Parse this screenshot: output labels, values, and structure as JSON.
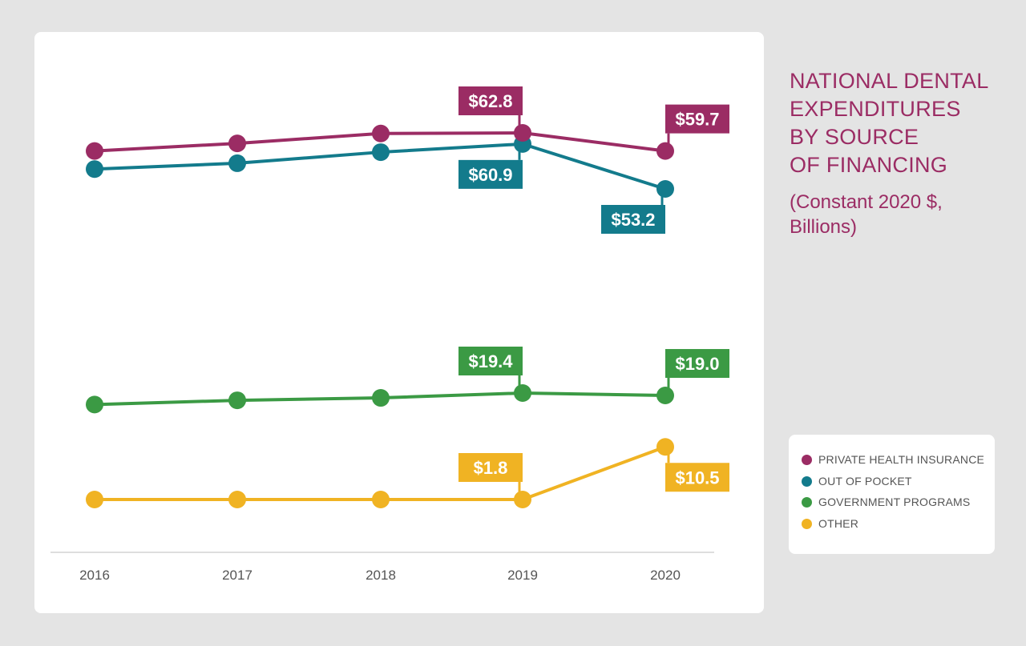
{
  "title_lines": [
    "NATIONAL DENTAL",
    "EXPENDITURES",
    "BY SOURCE",
    "OF FINANCING"
  ],
  "subtitle": "(Constant 2020 $, Billions)",
  "colors": {
    "private": "#9b2c64",
    "pocket": "#137b8c",
    "government": "#3b9a44",
    "other": "#f0b323",
    "title": "#9b2c64",
    "axis_text": "#555555"
  },
  "legend": [
    {
      "label": "PRIVATE HEALTH INSURANCE",
      "color": "#9b2c64"
    },
    {
      "label": "OUT OF POCKET",
      "color": "#137b8c"
    },
    {
      "label": "GOVERNMENT PROGRAMS",
      "color": "#3b9a44"
    },
    {
      "label": "OTHER",
      "color": "#f0b323"
    }
  ],
  "chart_data": {
    "type": "line",
    "title": "NATIONAL DENTAL EXPENDITURES BY SOURCE OF FINANCING",
    "subtitle": "(Constant 2020 $, Billions)",
    "categories": [
      "2016",
      "2017",
      "2018",
      "2019",
      "2020"
    ],
    "xlabel": "",
    "ylabel": "",
    "series": [
      {
        "name": "PRIVATE HEALTH INSURANCE",
        "color": "#9b2c64",
        "values": [
          59.7,
          61.0,
          62.7,
          62.8,
          59.7
        ],
        "labels": [
          null,
          null,
          null,
          "$62.8",
          "$59.7"
        ],
        "label_pos": [
          null,
          null,
          null,
          "above-left",
          "above-right"
        ]
      },
      {
        "name": "OUT OF POCKET",
        "color": "#137b8c",
        "values": [
          56.6,
          57.6,
          59.5,
          60.9,
          53.2
        ],
        "labels": [
          null,
          null,
          null,
          "$60.9",
          "$53.2"
        ],
        "label_pos": [
          null,
          null,
          null,
          "below-left",
          "below-left"
        ]
      },
      {
        "name": "GOVERNMENT PROGRAMS",
        "color": "#3b9a44",
        "values": [
          17.5,
          18.2,
          18.6,
          19.4,
          19.0
        ],
        "labels": [
          null,
          null,
          null,
          "$19.4",
          "$19.0"
        ],
        "label_pos": [
          null,
          null,
          null,
          "above-left",
          "above-right"
        ]
      },
      {
        "name": "OTHER",
        "color": "#f0b323",
        "values": [
          1.8,
          1.8,
          1.8,
          1.8,
          10.5
        ],
        "labels": [
          null,
          null,
          null,
          "$1.8",
          "$10.5"
        ],
        "label_pos": [
          null,
          null,
          null,
          "above-left",
          "below-right"
        ]
      }
    ]
  }
}
